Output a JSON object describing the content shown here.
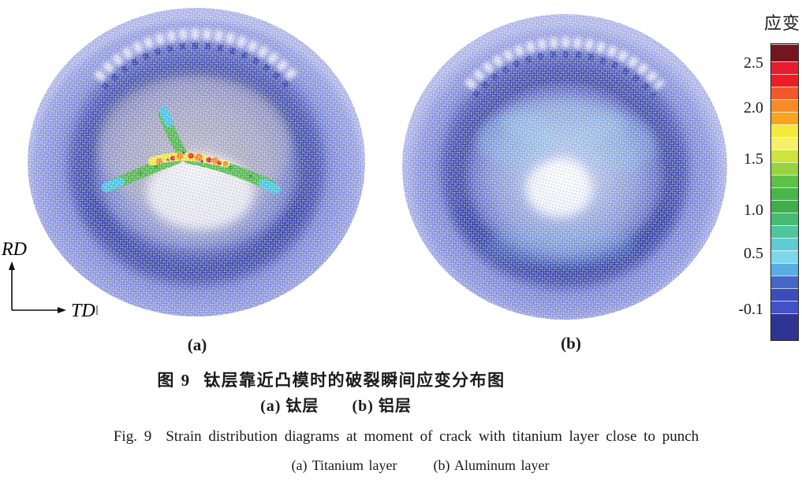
{
  "figure": {
    "colorbar": {
      "title": "应变",
      "tick_labels": [
        "2.5",
        "2.0",
        "1.5",
        "1.0",
        "0.5",
        "-0.1"
      ],
      "border_color": "#222222",
      "segments": [
        {
          "c": "#74161F",
          "h": 22
        },
        {
          "c": "#E51D2F",
          "h": 16
        },
        {
          "c": "#EE1D25",
          "h": 16
        },
        {
          "c": "#F1582B",
          "h": 16
        },
        {
          "c": "#F68C27",
          "h": 16
        },
        {
          "c": "#F9A421",
          "h": 16
        },
        {
          "c": "#F5EA3A",
          "h": 16
        },
        {
          "c": "#F8F06A",
          "h": 16
        },
        {
          "c": "#CDE43B",
          "h": 16
        },
        {
          "c": "#97D341",
          "h": 16
        },
        {
          "c": "#5FC04A",
          "h": 16
        },
        {
          "c": "#47B74A",
          "h": 16
        },
        {
          "c": "#3FAF4B",
          "h": 16
        },
        {
          "c": "#46BB73",
          "h": 16
        },
        {
          "c": "#4FC5A0",
          "h": 16
        },
        {
          "c": "#5FCBD3",
          "h": 16
        },
        {
          "c": "#7FD6EA",
          "h": 16
        },
        {
          "c": "#58AEE4",
          "h": 16
        },
        {
          "c": "#4667C9",
          "h": 16
        },
        {
          "c": "#3A4DB8",
          "h": 16
        },
        {
          "c": "#4052C5",
          "h": 16
        },
        {
          "c": "#2E3492",
          "h": 34
        }
      ]
    },
    "axes": {
      "vertical_label": "RD",
      "horizontal_label": "TD"
    },
    "panels": [
      {
        "label": "(a)",
        "name_zh": "钛层",
        "name_en": "Titanium layer"
      },
      {
        "label": "(b)",
        "name_zh": "铝层",
        "name_en": "Aluminum layer"
      }
    ],
    "captions": {
      "zh_fig_no": "图 9",
      "zh_title": "钛层靠近凸模时的破裂瞬间应变分布图",
      "zh_sub_a": "(a) 钛层",
      "zh_sub_b": "(b) 铝层",
      "en_fig_no": "Fig. 9",
      "en_title": "Strain distribution diagrams at moment of crack with titanium layer close to punch",
      "en_sub_a": "(a) Titanium layer",
      "en_sub_b": "(b) Aluminum layer"
    }
  },
  "chart_data": {
    "type": "heatmap",
    "title": "图 9 钛层靠近凸模时的破裂瞬间应变分布图 / Fig. 9 Strain distribution diagrams at moment of crack with titanium layer close to punch",
    "legend": {
      "title": "应变",
      "position": "right",
      "orientation": "vertical",
      "tick_values": [
        2.5,
        2.0,
        1.5,
        1.0,
        0.5,
        -0.1
      ],
      "range": [
        -0.1,
        2.75
      ]
    },
    "panels": [
      {
        "label": "(a)",
        "series": "钛层 (Titanium layer)",
        "summary": "Circular blank, mostly low strain ~0-0.4 (blue speckle) with dark-blue ring at cup wall; central Y-shaped crack zone: arms ~1.2-1.6 (green), arm tips ~0.6-0.9 (cyan), crack core ~1.9-2.6 (yellow/orange/red)"
      },
      {
        "label": "(b)",
        "series": "铝层 (Aluminum layer)",
        "summary": "Circular blank, uniform low strain ~0-0.5 (blue speckle) with dark-blue ring; mild cyan patches ~0.5-0.8 near dome center; no crack"
      }
    ],
    "annotations": [
      "RD vertical direction arrow",
      "TD horizontal direction arrow"
    ]
  }
}
